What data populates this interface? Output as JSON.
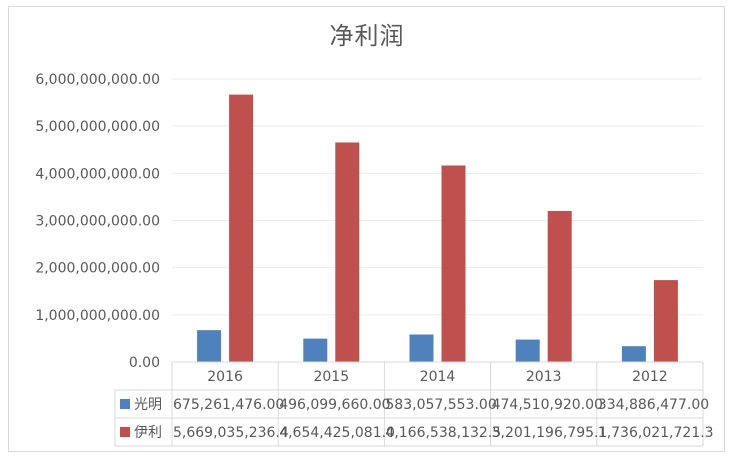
{
  "chart_data": {
    "type": "bar",
    "title": "净利润",
    "categories": [
      "2016",
      "2015",
      "2014",
      "2013",
      "2012"
    ],
    "ylim": [
      0,
      6000000000
    ],
    "yticks": [
      "0.00",
      "1,000,000,000.00",
      "2,000,000,000.00",
      "3,000,000,000.00",
      "4,000,000,000.00",
      "5,000,000,000.00",
      "6,000,000,000.00"
    ],
    "grid": true,
    "legend": "data-table-below",
    "series": [
      {
        "name": "光明",
        "color": "#4f81bd",
        "values": [
          675261476.0,
          496099660.0,
          583057553.0,
          474510920.0,
          334886477.0
        ],
        "labels": [
          "675,261,476.00",
          "496,099,660.00",
          "583,057,553.00",
          "474,510,920.00",
          "334,886,477.00"
        ]
      },
      {
        "name": "伊利",
        "color": "#c0504d",
        "values": [
          5669035236.4,
          4654425081.0,
          4166538132.5,
          3201196795.1,
          1736021721.3
        ],
        "labels": [
          "5,669,035,236.4",
          "4,654,425,081.0",
          "4,166,538,132.5",
          "3,201,196,795.1",
          "1,736,021,721.3"
        ]
      }
    ]
  }
}
